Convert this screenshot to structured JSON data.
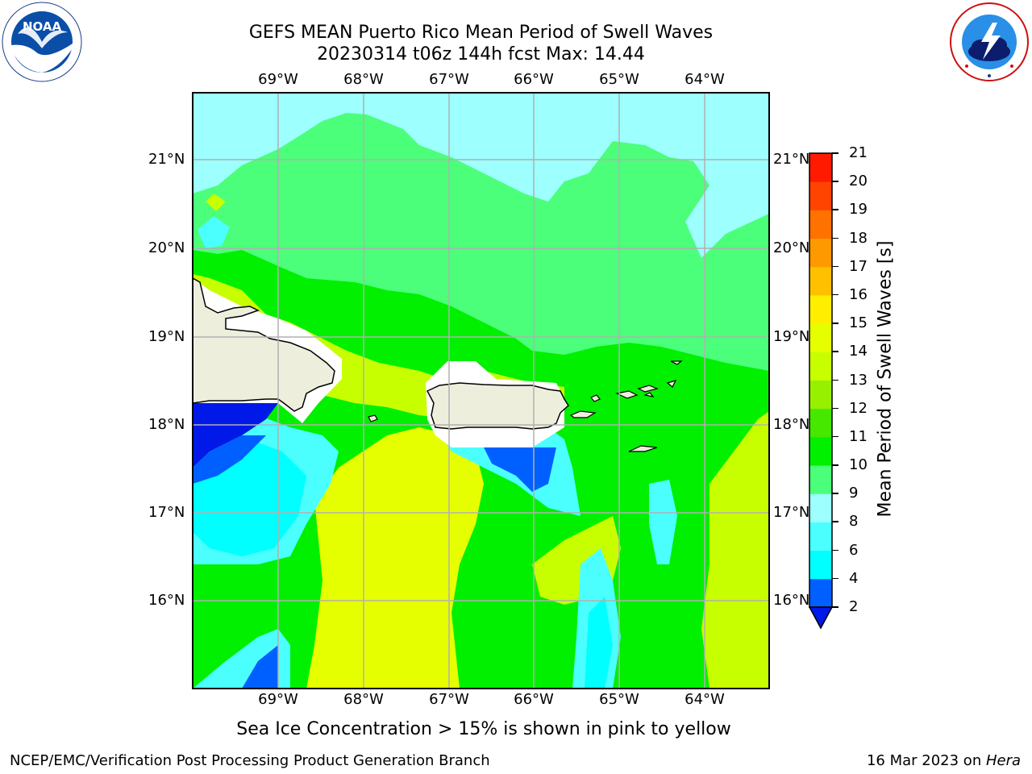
{
  "header": {
    "title_line1": "GEFS MEAN Puerto Rico Mean Period of Swell Waves",
    "title_line2": "20230314 t06z 144h fcst   Max: 14.44"
  },
  "logos": {
    "left": {
      "icon": "noaa-logo",
      "text": "NOAA",
      "ring_text": "NATIONAL OCEANIC AND ATMOSPHERIC ADMINISTRATION · U.S. DEPARTMENT OF COMMERCE"
    },
    "right": {
      "icon": "nws-logo",
      "ring_text": "NATIONAL WEATHER SERVICE"
    }
  },
  "map": {
    "lon_labels": [
      "69°W",
      "68°W",
      "67°W",
      "66°W",
      "65°W",
      "64°W"
    ],
    "lat_labels": [
      "21°N",
      "20°N",
      "19°N",
      "18°N",
      "17°N",
      "16°N"
    ],
    "colors": {
      "ocean_top": "#9dfffe",
      "green": "#00f000",
      "light_green": "#4cff7a",
      "yellow_green": "#c8ff00",
      "yellow": "#e6ff00",
      "cyan": "#00ffff",
      "mid_cyan": "#4cffff",
      "blue": "#0060ff",
      "dark_blue": "#0018e8",
      "land": "#eeeedd",
      "grid": "#b0b0b0"
    }
  },
  "colorbar": {
    "label": "Mean Period of Swell Waves [s]",
    "ticks": [
      "2",
      "4",
      "6",
      "8",
      "9",
      "10",
      "11",
      "12",
      "13",
      "14",
      "15",
      "16",
      "17",
      "18",
      "19",
      "20",
      "21"
    ],
    "colors": [
      "#0060ff",
      "#00ffff",
      "#4cffff",
      "#9dfffe",
      "#4cff7a",
      "#00f000",
      "#46e800",
      "#96f000",
      "#c8ff00",
      "#e6ff00",
      "#ffee00",
      "#ffc000",
      "#ff9900",
      "#ff7200",
      "#ff4400",
      "#ff1a00"
    ],
    "extend_color": "#0018e8"
  },
  "caption": "Sea Ice Concentration > 15% is shown in pink to yellow",
  "footer": {
    "left": "NCEP/EMC/Verification Post Processing Product Generation Branch",
    "date": "16 Mar 2023 on ",
    "machine": "Hera"
  }
}
